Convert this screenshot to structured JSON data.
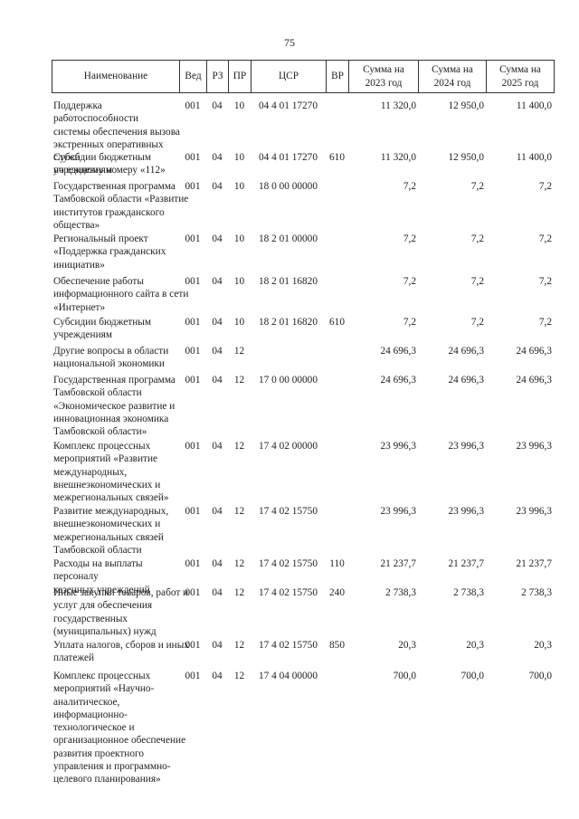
{
  "page_number": "75",
  "table": {
    "header": [
      "Наименование",
      "Вед",
      "РЗ",
      "ПР",
      "ЦСР",
      "ВР",
      "Сумма на\n2023 год",
      "Сумма на\n2024 год",
      "Сумма на\n2025 год"
    ],
    "rows": [
      {
        "name": "Поддержка работоспособности\nсистемы обеспечения вызова\nэкстренных оперативных служб\nпо единому номеру «112»",
        "ved": "001",
        "rz": "04",
        "pr": "10",
        "csr": "04 4 01 17270",
        "s2023": "11 320,0",
        "s2024": "12 950,0",
        "s2025": "11 400,0"
      },
      {
        "name": "Субсидии бюджетным\nучреждениям",
        "ved": "001",
        "rz": "04",
        "pr": "10",
        "csr": "04 4 01 17270",
        "vr": "610",
        "s2023": "11 320,0",
        "s2024": "12 950,0",
        "s2025": "11 400,0"
      },
      {
        "name": "Государственная программа\nТамбовской области «Развитие\nинститутов гражданского\nобщества»",
        "ved": "001",
        "rz": "04",
        "pr": "10",
        "csr": "18 0 00 00000",
        "s2023": "7,2",
        "s2024": "7,2",
        "s2025": "7,2"
      },
      {
        "name": "Региональный проект\n«Поддержка гражданских\nинициатив»",
        "ved": "001",
        "rz": "04",
        "pr": "10",
        "csr": "18 2 01 00000",
        "s2023": "7,2",
        "s2024": "7,2",
        "s2025": "7,2"
      },
      {
        "name": "Обеспечение работы\nинформационного сайта в сети\n«Интернет»",
        "ved": "001",
        "rz": "04",
        "pr": "10",
        "csr": "18 2 01 16820",
        "s2023": "7,2",
        "s2024": "7,2",
        "s2025": "7,2"
      },
      {
        "name": "Субсидии бюджетным\nучреждениям",
        "ved": "001",
        "rz": "04",
        "pr": "10",
        "csr": "18 2 01 16820",
        "vr": "610",
        "s2023": "7,2",
        "s2024": "7,2",
        "s2025": "7,2"
      },
      {
        "name": "Другие вопросы в области\nнациональной экономики",
        "ved": "001",
        "rz": "04",
        "pr": "12",
        "s2023": "24 696,3",
        "s2024": "24 696,3",
        "s2025": "24 696,3"
      },
      {
        "name": "Государственная программа\nТамбовской области\n«Экономическое развитие и\nинновационная экономика\nТамбовской области»",
        "ved": "001",
        "rz": "04",
        "pr": "12",
        "csr": "17 0 00 00000",
        "s2023": "24 696,3",
        "s2024": "24 696,3",
        "s2025": "24 696,3"
      },
      {
        "name": "Комплекс процессных\nмероприятий «Развитие\nмеждународных,\nвнешнеэкономических и\nмежрегиональных связей»",
        "ved": "001",
        "rz": "04",
        "pr": "12",
        "csr": "17 4 02 00000",
        "s2023": "23 996,3",
        "s2024": "23 996,3",
        "s2025": "23 996,3"
      },
      {
        "name": "Развитие международных,\nвнешнеэкономических и\nмежрегиональных связей\nТамбовской области",
        "ved": "001",
        "rz": "04",
        "pr": "12",
        "csr": "17 4 02 15750",
        "s2023": "23 996,3",
        "s2024": "23 996,3",
        "s2025": "23 996,3"
      },
      {
        "name": "Расходы на выплаты персоналу\nказенных учреждений",
        "ved": "001",
        "rz": "04",
        "pr": "12",
        "csr": "17 4 02 15750",
        "vr": "110",
        "s2023": "21 237,7",
        "s2024": "21 237,7",
        "s2025": "21 237,7"
      },
      {
        "name": "Иные закупки товаров, работ и\nуслуг для обеспечения\nгосударственных\n(муниципальных) нужд",
        "ved": "001",
        "rz": "04",
        "pr": "12",
        "csr": "17 4 02 15750",
        "vr": "240",
        "s2023": "2 738,3",
        "s2024": "2 738,3",
        "s2025": "2 738,3"
      },
      {
        "name": "Уплата налогов, сборов и иных\nплатежей",
        "ved": "001",
        "rz": "04",
        "pr": "12",
        "csr": "17 4 02 15750",
        "vr": "850",
        "s2023": "20,3",
        "s2024": "20,3",
        "s2025": "20,3"
      },
      {
        "name": "Комплекс процессных\nмероприятий «Научно-\nаналитическое,\nинформационно-\nтехнологическое и\nорганизационное обеспечение\nразвития проектного\nуправления и программно-\nцелевого планирования»",
        "ved": "001",
        "rz": "04",
        "pr": "12",
        "csr": "17 4 04 00000",
        "s2023": "700,0",
        "s2024": "700,0",
        "s2025": "700,0"
      }
    ]
  }
}
